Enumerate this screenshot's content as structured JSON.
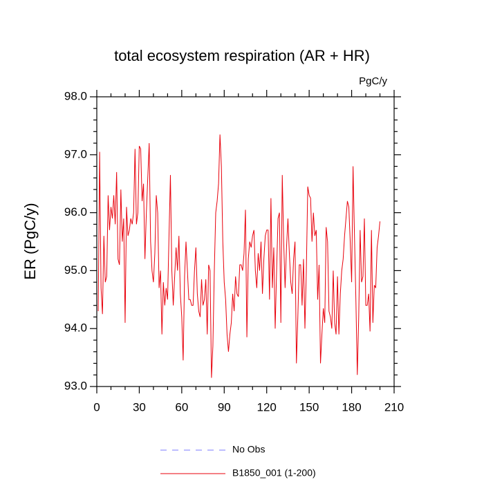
{
  "chart_data": {
    "type": "line",
    "title": "total ecosystem respiration (AR + HR)",
    "units": "PgC/y",
    "y_label": "ER  (PgC/y)",
    "xlim": [
      0,
      210
    ],
    "xticks": [
      0,
      30,
      60,
      90,
      120,
      150,
      180,
      210
    ],
    "ylim": [
      93,
      98
    ],
    "yticks": [
      {
        "value": 93,
        "label": "93.0"
      },
      {
        "value": 94,
        "label": "94.0"
      },
      {
        "value": 95,
        "label": "95.0"
      },
      {
        "value": 96,
        "label": "96.0"
      },
      {
        "value": 97,
        "label": "97.0"
      },
      {
        "value": 98,
        "label": "98.0"
      }
    ],
    "legend_entries": [
      {
        "name": "No Obs",
        "color": "#7b7bff",
        "dashed": true
      }
    ],
    "x": [
      1,
      2,
      3,
      4,
      5,
      6,
      7,
      8,
      9,
      10,
      11,
      12,
      13,
      14,
      15,
      16,
      17,
      18,
      19,
      20,
      21,
      22,
      23,
      24,
      25,
      26,
      27,
      28,
      29,
      30,
      31,
      32,
      33,
      34,
      35,
      36,
      37,
      38,
      39,
      40,
      41,
      42,
      43,
      44,
      45,
      46,
      47,
      48,
      49,
      50,
      51,
      52,
      53,
      54,
      55,
      56,
      57,
      58,
      59,
      60,
      61,
      62,
      63,
      64,
      65,
      66,
      67,
      68,
      69,
      70,
      71,
      72,
      73,
      74,
      75,
      76,
      77,
      78,
      79,
      80,
      81,
      82,
      83,
      84,
      85,
      86,
      87,
      88,
      89,
      90,
      91,
      92,
      93,
      94,
      95,
      96,
      97,
      98,
      99,
      100,
      101,
      102,
      103,
      104,
      105,
      106,
      107,
      108,
      109,
      110,
      111,
      112,
      113,
      114,
      115,
      116,
      117,
      118,
      119,
      120,
      121,
      122,
      123,
      124,
      125,
      126,
      127,
      128,
      129,
      130,
      131,
      132,
      133,
      134,
      135,
      136,
      137,
      138,
      139,
      140,
      141,
      142,
      143,
      144,
      145,
      146,
      147,
      148,
      149,
      150,
      151,
      152,
      153,
      154,
      155,
      156,
      157,
      158,
      159,
      160,
      161,
      162,
      163,
      164,
      165,
      166,
      167,
      168,
      169,
      170,
      171,
      172,
      173,
      174,
      175,
      176,
      177,
      178,
      179,
      180,
      181,
      182,
      183,
      184,
      185,
      186,
      187,
      188,
      189,
      190,
      191,
      192,
      193,
      194,
      195,
      196,
      197,
      198,
      199,
      200
    ],
    "series": [
      {
        "name": "B1850_001 (1-200)",
        "color": "#e8000b",
        "values": [
          94.3,
          97.05,
          94.7,
          94.25,
          95.6,
          94.8,
          94.9,
          96.3,
          95.7,
          96.1,
          95.9,
          96.3,
          95.8,
          96.7,
          95.2,
          95.1,
          96.4,
          95.5,
          95.9,
          94.1,
          96.1,
          95.6,
          95.7,
          95.9,
          95.8,
          96.0,
          97.1,
          95.8,
          96.0,
          97.15,
          97.1,
          96.2,
          96.5,
          95.2,
          96.0,
          96.6,
          97.2,
          95.5,
          95.0,
          94.8,
          95.3,
          96.3,
          96.0,
          94.7,
          95.0,
          93.9,
          94.8,
          94.4,
          94.7,
          94.5,
          95.6,
          96.65,
          95.0,
          94.4,
          94.9,
          95.4,
          95.0,
          95.6,
          94.6,
          94.2,
          93.45,
          94.9,
          95.5,
          95.0,
          94.5,
          94.5,
          94.4,
          94.4,
          95.0,
          95.4,
          94.6,
          94.3,
          94.2,
          94.85,
          94.4,
          94.5,
          94.85,
          93.9,
          95.1,
          95.0,
          93.15,
          93.7,
          95.0,
          96.0,
          96.2,
          96.5,
          97.35,
          96.8,
          95.5,
          94.8,
          94.5,
          93.9,
          93.6,
          93.9,
          94.1,
          94.6,
          94.3,
          94.9,
          94.6,
          94.55,
          95.1,
          95.1,
          95.0,
          95.3,
          96.05,
          93.85,
          95.2,
          95.5,
          95.4,
          95.6,
          95.7,
          95.0,
          94.7,
          95.3,
          95.0,
          95.5,
          94.6,
          95.2,
          95.6,
          95.7,
          95.7,
          94.5,
          96.25,
          94.7,
          95.4,
          94.0,
          95.0,
          95.9,
          96.0,
          94.1,
          96.65,
          95.5,
          94.7,
          95.4,
          95.9,
          95.3,
          94.8,
          94.6,
          95.2,
          95.5,
          93.4,
          94.2,
          95.1,
          95.1,
          94.4,
          95.2,
          94.0,
          95.0,
          96.45,
          96.3,
          96.25,
          95.5,
          96.0,
          95.6,
          95.7,
          94.5,
          95.1,
          93.4,
          93.9,
          94.35,
          94.1,
          95.75,
          95.5,
          94.3,
          94.2,
          94.0,
          95.0,
          94.1,
          93.9,
          94.9,
          93.9,
          94.6,
          95.0,
          95.2,
          95.6,
          95.9,
          96.2,
          96.1,
          95.5,
          94.8,
          96.8,
          95.6,
          94.5,
          93.2,
          94.2,
          95.7,
          94.8,
          94.9,
          95.9,
          94.4,
          94.4,
          94.6,
          93.95,
          95.7,
          94.1,
          94.75,
          94.7,
          95.4,
          95.6,
          95.85
        ]
      }
    ]
  }
}
